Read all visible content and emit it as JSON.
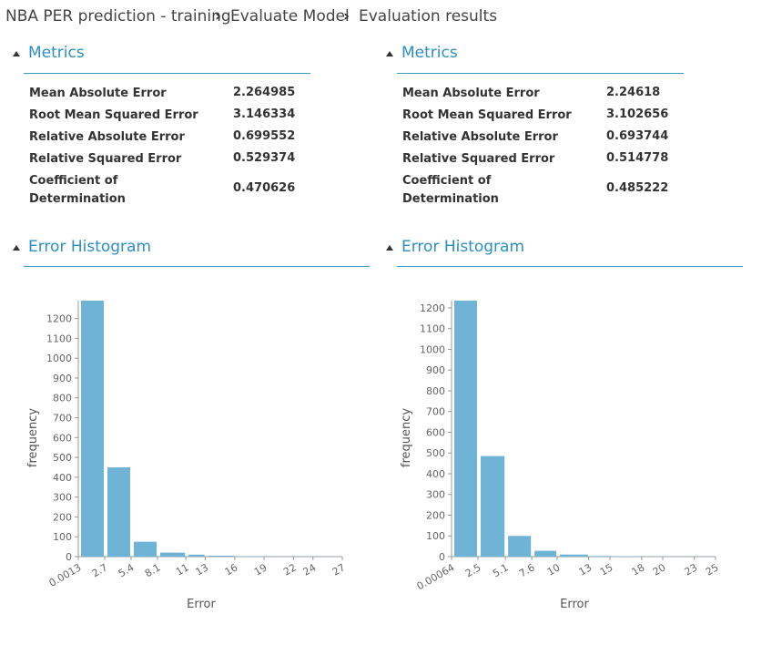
{
  "breadcrumb": [
    "NBA PER prediction - training",
    "Evaluate Model",
    "Evaluation results"
  ],
  "panels": [
    {
      "metrics_title": "Metrics",
      "histogram_title": "Error Histogram",
      "metrics": [
        {
          "label": "Mean Absolute Error",
          "value": 2.264985
        },
        {
          "label": "Root Mean Squared Error",
          "value": 3.146334
        },
        {
          "label": "Relative Absolute Error",
          "value": 0.699552
        },
        {
          "label": "Relative Squared Error",
          "value": 0.529374
        },
        {
          "label": "Coefficient of Determination",
          "value": 0.470626
        }
      ]
    },
    {
      "metrics_title": "Metrics",
      "histogram_title": "Error Histogram",
      "metrics": [
        {
          "label": "Mean Absolute Error",
          "value": 2.24618
        },
        {
          "label": "Root Mean Squared Error",
          "value": 3.102656
        },
        {
          "label": "Relative Absolute Error",
          "value": 0.693744
        },
        {
          "label": "Relative Squared Error",
          "value": 0.514778
        },
        {
          "label": "Coefficient of Determination",
          "value": 0.485222
        }
      ]
    }
  ],
  "chart_data": [
    {
      "type": "histogram",
      "xlabel": "Error",
      "ylabel": "frequency",
      "color": "#6fb3d7",
      "bins": [
        0.0013,
        2.7,
        5.4,
        8.1,
        11,
        13,
        16,
        19,
        22,
        24,
        27
      ],
      "values": [
        1290,
        450,
        75,
        20,
        10,
        5,
        2,
        1,
        1,
        1
      ],
      "xlim": [
        0.0013,
        27
      ],
      "ylim": [
        0,
        1290
      ],
      "yticks": [
        0,
        100,
        200,
        300,
        400,
        500,
        600,
        700,
        800,
        900,
        1000,
        1100,
        1200
      ]
    },
    {
      "type": "histogram",
      "xlabel": "Error",
      "ylabel": "frequency",
      "color": "#6fb3d7",
      "bins": [
        0.00064,
        2.5,
        5.1,
        7.6,
        10,
        13,
        15,
        18,
        20,
        23,
        25
      ],
      "values": [
        1235,
        485,
        100,
        28,
        10,
        3,
        2,
        1,
        1,
        1
      ],
      "xlim": [
        0.00064,
        25
      ],
      "ylim": [
        0,
        1235
      ],
      "yticks": [
        0,
        100,
        200,
        300,
        400,
        500,
        600,
        700,
        800,
        900,
        1000,
        1100,
        1200
      ]
    }
  ]
}
